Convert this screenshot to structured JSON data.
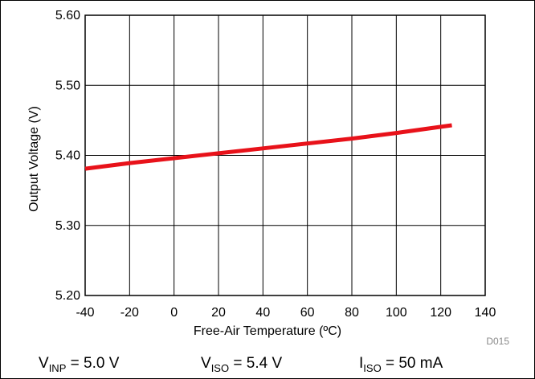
{
  "chart_data": {
    "type": "line",
    "xlabel": "Free-Air Temperature (ºC)",
    "ylabel": "Output Voltage (V)",
    "xlim": [
      -40,
      140
    ],
    "ylim": [
      5.2,
      5.6
    ],
    "x_ticks": [
      "-40",
      "-20",
      "0",
      "20",
      "40",
      "60",
      "80",
      "100",
      "120",
      "140"
    ],
    "y_ticks": [
      "5.20",
      "5.30",
      "5.40",
      "5.50",
      "5.60"
    ],
    "grid": true,
    "series": [
      {
        "color": "#e8121a",
        "x": [
          -40,
          -20,
          0,
          20,
          40,
          60,
          80,
          100,
          125
        ],
        "y": [
          5.381,
          5.389,
          5.396,
          5.403,
          5.41,
          5.417,
          5.424,
          5.432,
          5.443
        ]
      }
    ]
  },
  "figure_code": "D015",
  "conditions": [
    {
      "main": "V",
      "sub": "INP",
      "rest": " = 5.0 V"
    },
    {
      "main": "V",
      "sub": "ISO",
      "rest": " = 5.4 V"
    },
    {
      "main": "I",
      "sub": "ISO",
      "rest": " = 50 mA"
    }
  ]
}
